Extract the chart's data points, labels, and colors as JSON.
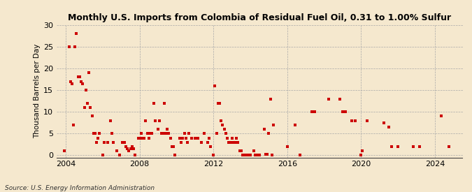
{
  "title": "Monthly U.S. Imports from Colombia of Residual Fuel Oil, 0.31 to 1.00% Sulfur",
  "ylabel": "Thousand Barrels per Day",
  "source": "Source: U.S. Energy Information Administration",
  "background_color": "#f5e8ce",
  "plot_bg_color": "#fdf6e3",
  "marker_color": "#cc0000",
  "ylim": [
    -0.5,
    30
  ],
  "yticks": [
    0,
    5,
    10,
    15,
    20,
    25,
    30
  ],
  "xlim": [
    2003.5,
    2025.5
  ],
  "xticks": [
    2004,
    2008,
    2012,
    2016,
    2020,
    2024
  ],
  "data_points": [
    [
      2003.92,
      1.0
    ],
    [
      2004.17,
      25.0
    ],
    [
      2004.25,
      17.0
    ],
    [
      2004.33,
      16.5
    ],
    [
      2004.42,
      7.0
    ],
    [
      2004.5,
      25.0
    ],
    [
      2004.58,
      28.0
    ],
    [
      2004.67,
      18.0
    ],
    [
      2004.75,
      18.0
    ],
    [
      2004.83,
      17.0
    ],
    [
      2004.92,
      16.5
    ],
    [
      2005.0,
      11.0
    ],
    [
      2005.08,
      15.0
    ],
    [
      2005.17,
      12.0
    ],
    [
      2005.25,
      19.0
    ],
    [
      2005.33,
      11.0
    ],
    [
      2005.42,
      9.0
    ],
    [
      2005.5,
      5.0
    ],
    [
      2005.58,
      5.0
    ],
    [
      2005.67,
      3.0
    ],
    [
      2005.75,
      4.0
    ],
    [
      2005.83,
      5.0
    ],
    [
      2006.0,
      0.0
    ],
    [
      2006.08,
      3.0
    ],
    [
      2006.25,
      3.0
    ],
    [
      2006.42,
      8.0
    ],
    [
      2006.5,
      5.0
    ],
    [
      2006.58,
      3.0
    ],
    [
      2006.75,
      1.0
    ],
    [
      2006.92,
      0.0
    ],
    [
      2007.08,
      3.0
    ],
    [
      2007.17,
      3.0
    ],
    [
      2007.25,
      2.0
    ],
    [
      2007.33,
      1.5
    ],
    [
      2007.42,
      1.0
    ],
    [
      2007.5,
      1.5
    ],
    [
      2007.58,
      2.0
    ],
    [
      2007.67,
      1.5
    ],
    [
      2007.75,
      0.0
    ],
    [
      2007.92,
      4.0
    ],
    [
      2008.0,
      4.0
    ],
    [
      2008.08,
      5.0
    ],
    [
      2008.17,
      4.0
    ],
    [
      2008.25,
      4.0
    ],
    [
      2008.33,
      8.0
    ],
    [
      2008.42,
      5.0
    ],
    [
      2008.5,
      4.0
    ],
    [
      2008.58,
      5.0
    ],
    [
      2008.67,
      5.0
    ],
    [
      2008.75,
      12.0
    ],
    [
      2008.83,
      8.0
    ],
    [
      2009.0,
      6.0
    ],
    [
      2009.08,
      8.0
    ],
    [
      2009.17,
      5.0
    ],
    [
      2009.25,
      5.0
    ],
    [
      2009.33,
      12.0
    ],
    [
      2009.42,
      5.0
    ],
    [
      2009.5,
      6.0
    ],
    [
      2009.58,
      5.0
    ],
    [
      2009.67,
      4.0
    ],
    [
      2009.75,
      2.0
    ],
    [
      2009.83,
      2.0
    ],
    [
      2009.92,
      0.0
    ],
    [
      2010.17,
      4.0
    ],
    [
      2010.25,
      3.0
    ],
    [
      2010.33,
      4.0
    ],
    [
      2010.42,
      5.0
    ],
    [
      2010.5,
      4.0
    ],
    [
      2010.58,
      3.0
    ],
    [
      2010.67,
      5.0
    ],
    [
      2010.83,
      4.0
    ],
    [
      2011.0,
      4.0
    ],
    [
      2011.17,
      4.0
    ],
    [
      2011.33,
      3.0
    ],
    [
      2011.5,
      5.0
    ],
    [
      2011.67,
      3.0
    ],
    [
      2011.75,
      4.0
    ],
    [
      2011.83,
      2.0
    ],
    [
      2012.0,
      0.0
    ],
    [
      2012.08,
      16.0
    ],
    [
      2012.17,
      5.0
    ],
    [
      2012.25,
      12.0
    ],
    [
      2012.33,
      12.0
    ],
    [
      2012.42,
      8.0
    ],
    [
      2012.5,
      7.0
    ],
    [
      2012.58,
      6.0
    ],
    [
      2012.67,
      5.0
    ],
    [
      2012.75,
      4.0
    ],
    [
      2012.83,
      3.0
    ],
    [
      2012.92,
      3.0
    ],
    [
      2013.0,
      4.0
    ],
    [
      2013.08,
      3.0
    ],
    [
      2013.17,
      3.0
    ],
    [
      2013.25,
      4.0
    ],
    [
      2013.33,
      3.0
    ],
    [
      2013.42,
      1.0
    ],
    [
      2013.5,
      1.0
    ],
    [
      2013.58,
      0.0
    ],
    [
      2013.67,
      0.0
    ],
    [
      2013.75,
      0.0
    ],
    [
      2013.83,
      0.0
    ],
    [
      2013.92,
      0.0
    ],
    [
      2014.0,
      0.0
    ],
    [
      2014.17,
      1.0
    ],
    [
      2014.25,
      0.0
    ],
    [
      2014.33,
      0.0
    ],
    [
      2014.42,
      0.0
    ],
    [
      2014.5,
      0.0
    ],
    [
      2014.75,
      6.0
    ],
    [
      2014.83,
      0.3
    ],
    [
      2014.92,
      0.3
    ],
    [
      2015.0,
      5.0
    ],
    [
      2015.08,
      13.0
    ],
    [
      2015.17,
      0.0
    ],
    [
      2015.25,
      7.0
    ],
    [
      2016.0,
      2.0
    ],
    [
      2016.42,
      7.0
    ],
    [
      2016.67,
      0.0
    ],
    [
      2017.33,
      10.0
    ],
    [
      2017.5,
      10.0
    ],
    [
      2018.25,
      13.0
    ],
    [
      2018.83,
      13.0
    ],
    [
      2019.0,
      10.0
    ],
    [
      2019.17,
      10.0
    ],
    [
      2019.5,
      8.0
    ],
    [
      2019.67,
      8.0
    ],
    [
      2020.0,
      0.0
    ],
    [
      2020.08,
      1.0
    ],
    [
      2020.33,
      8.0
    ],
    [
      2021.25,
      7.5
    ],
    [
      2021.5,
      6.5
    ],
    [
      2021.67,
      2.0
    ],
    [
      2022.0,
      2.0
    ],
    [
      2022.83,
      2.0
    ],
    [
      2023.17,
      2.0
    ],
    [
      2024.33,
      9.0
    ],
    [
      2024.75,
      2.0
    ]
  ]
}
